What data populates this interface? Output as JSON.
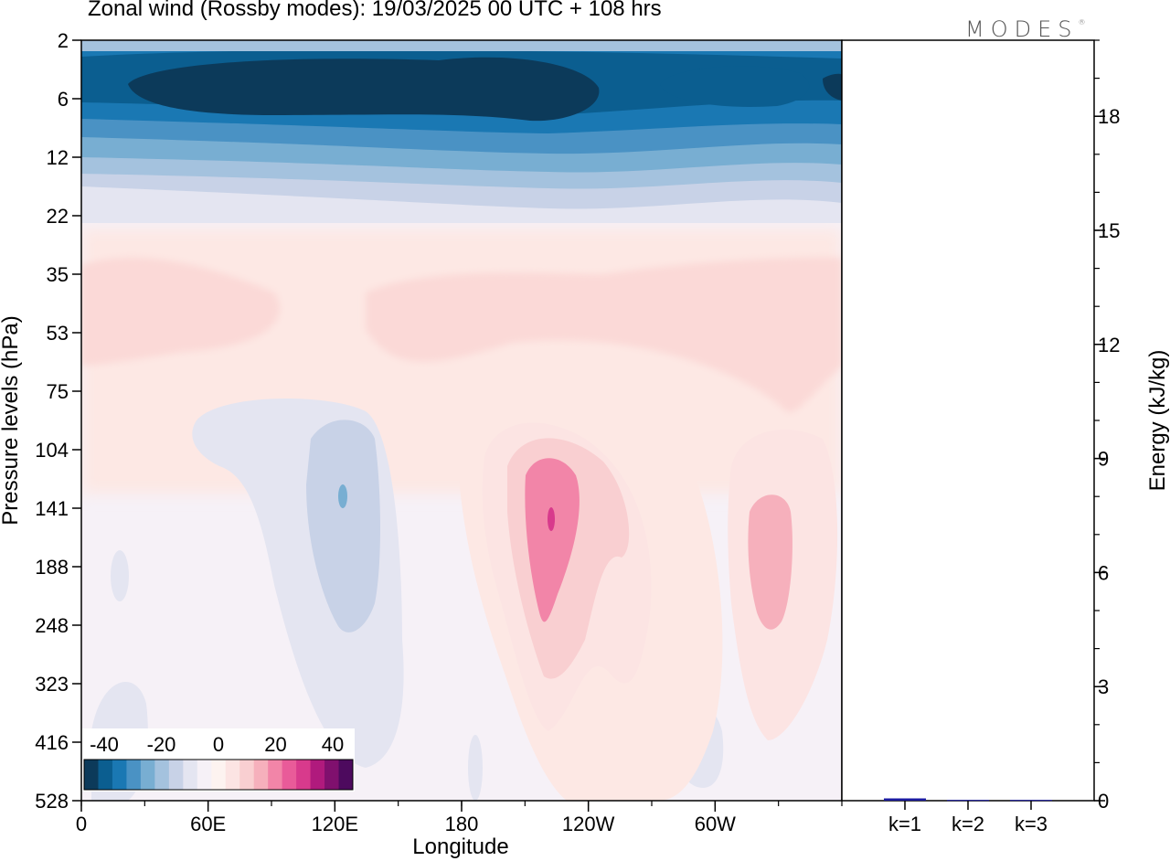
{
  "title": "Zonal wind (Rossby modes):  19/03/2025  00 UTC  + 108 hrs",
  "logo": "MODES",
  "logo_mark": "®",
  "chart_data": [
    {
      "type": "heatmap",
      "xlabel": "Longitude",
      "ylabel": "Pressure levels (hPa)",
      "x_ticks": [
        "0",
        "60E",
        "120E",
        "180",
        "120W",
        "60W"
      ],
      "x_minor_count": 12,
      "y_ticks": [
        "2",
        "6",
        "12",
        "22",
        "35",
        "53",
        "75",
        "104",
        "141",
        "188",
        "248",
        "323",
        "416",
        "528"
      ],
      "colorbar": {
        "labels": [
          "-40",
          "-20",
          "0",
          "20",
          "40"
        ],
        "colors": [
          "#0c3a5a",
          "#0b5e90",
          "#1a78b3",
          "#4a92c4",
          "#78aed2",
          "#a4c2de",
          "#c8d2e7",
          "#e4e5f1",
          "#f6f1f7",
          "#fdf3f0",
          "#fce4e3",
          "#f9cfd1",
          "#f6b0bc",
          "#f285a8",
          "#e95b99",
          "#d83a8c",
          "#b01a7d",
          "#80106e",
          "#4d0a5e"
        ]
      },
      "pattern": "Strong easterlies (-40 to -25) in the upper levels 2-12 hPa across all longitudes, weakening below; weak westerlies (0 to 5) between 22 and 75 hPa; negative anomaly near 120E (104-248 hPa); positive cores near 120W (~25) and near 30W (~15) between 104 and 323 hPa."
    },
    {
      "type": "bar",
      "categories": [
        "k=1",
        "k=2",
        "k=3"
      ],
      "values": [
        0.06,
        0.02,
        0.02
      ],
      "ylabel": "Energy (kJ/kg)",
      "ylim": [
        0,
        20
      ],
      "y_ticks": [
        "0",
        "3",
        "6",
        "9",
        "12",
        "15",
        "18"
      ],
      "bar_color": "#1a1aa0"
    }
  ]
}
